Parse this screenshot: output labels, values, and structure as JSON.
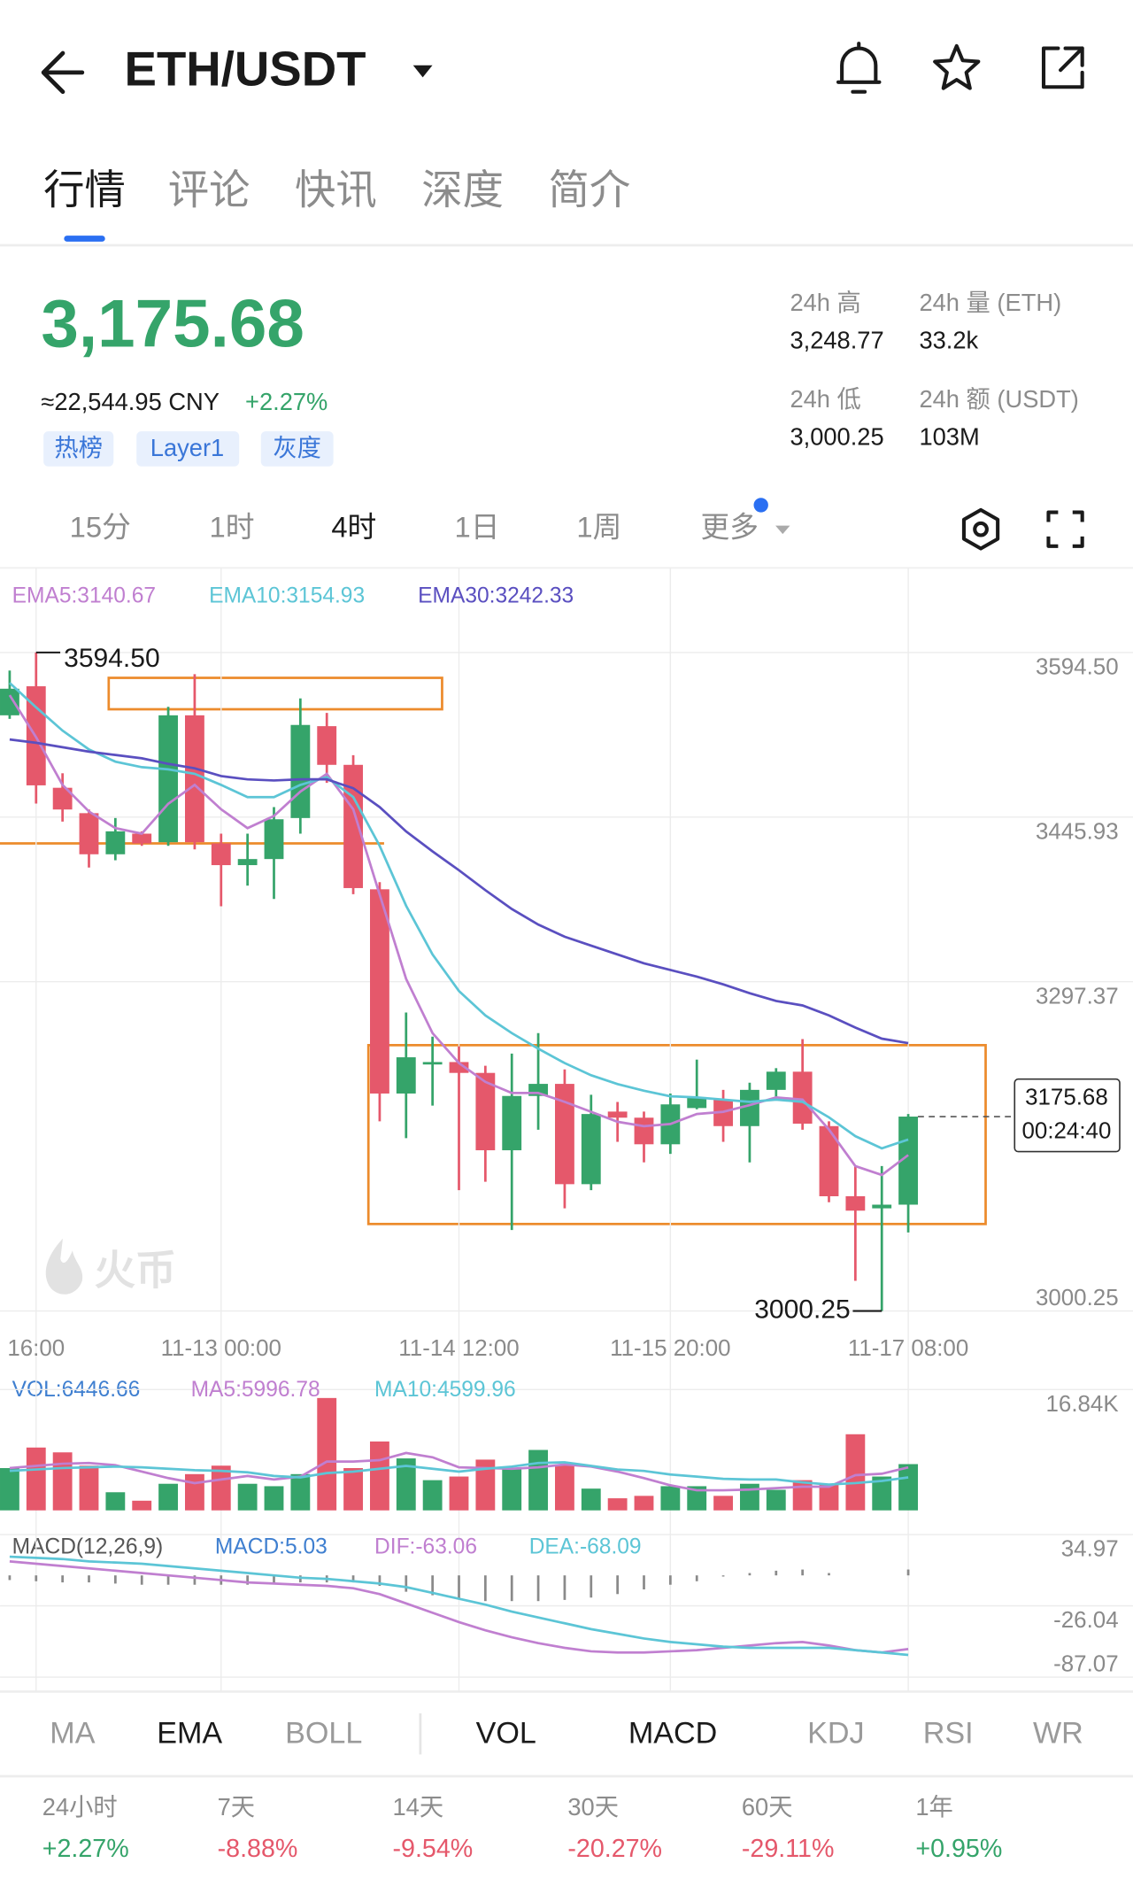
{
  "header": {
    "title": "ETH/USDT"
  },
  "tabs": [
    {
      "label": "行情",
      "active": true
    },
    {
      "label": "评论",
      "active": false
    },
    {
      "label": "快讯",
      "active": false
    },
    {
      "label": "深度",
      "active": false
    },
    {
      "label": "简介",
      "active": false
    }
  ],
  "price": {
    "last": "3,175.68",
    "cny": "≈22,544.95 CNY",
    "change": "+2.27%",
    "tags": [
      "热榜",
      "Layer1",
      "灰度"
    ]
  },
  "stats": [
    {
      "label": "24h 高",
      "value": "3,248.77"
    },
    {
      "label": "24h 量 (ETH)",
      "value": "33.2k"
    },
    {
      "label": "24h 低",
      "value": "3,000.25"
    },
    {
      "label": "24h 额 (USDT)",
      "value": "103M"
    }
  ],
  "intervals": [
    {
      "label": "15分",
      "active": false
    },
    {
      "label": "1时",
      "active": false
    },
    {
      "label": "4时",
      "active": true
    },
    {
      "label": "1日",
      "active": false
    },
    {
      "label": "1周",
      "active": false
    },
    {
      "label": "更多",
      "active": false
    }
  ],
  "watermark": "火币",
  "indicator_tabs": [
    {
      "label": "MA",
      "active": false
    },
    {
      "label": "EMA",
      "active": true
    },
    {
      "label": "BOLL",
      "active": false
    },
    {
      "label": "VOL",
      "active": true
    },
    {
      "label": "MACD",
      "active": true
    },
    {
      "label": "KDJ",
      "active": false
    },
    {
      "label": "RSI",
      "active": false
    },
    {
      "label": "WR",
      "active": false
    }
  ],
  "performance": [
    {
      "period": "24小时",
      "change": "+2.27%"
    },
    {
      "period": "7天",
      "change": "-8.88%"
    },
    {
      "period": "14天",
      "change": "-9.54%"
    },
    {
      "period": "30天",
      "change": "-20.27%"
    },
    {
      "period": "60天",
      "change": "-29.11%"
    },
    {
      "period": "1年",
      "change": "+0.95%"
    }
  ],
  "chart_data": [
    {
      "type": "candlestick",
      "up_color": "#35a46a",
      "down_color": "#e5586b",
      "categories": [
        null,
        "16:00",
        null,
        null,
        null,
        null,
        null,
        null,
        "11-13 00:00",
        null,
        null,
        null,
        null,
        null,
        null,
        null,
        null,
        "11-14 12:00",
        null,
        null,
        null,
        null,
        null,
        null,
        null,
        "11-15 20:00",
        null,
        null,
        null,
        null,
        null,
        null,
        null,
        null,
        "11-17 08:00"
      ],
      "open": [
        3537.8,
        3564.0,
        3472.4,
        3449.5,
        3412.4,
        3431.0,
        3423.3,
        3537.8,
        3422.2,
        3402.6,
        3408.1,
        3445.1,
        3528.0,
        3493.1,
        3380.8,
        3196.5,
        3222.7,
        3224.9,
        3215.1,
        3145.3,
        3194.3,
        3205.2,
        3114.7,
        3180.2,
        3174.7,
        3150.7,
        3183.4,
        3191.1,
        3167.1,
        3199.8,
        3216.2,
        3167.1,
        3103.8,
        3092.9,
        3096.2
      ],
      "high": [
        3578.2,
        3594.5,
        3485.5,
        3452.8,
        3445.1,
        3433.1,
        3545.5,
        3574.9,
        3431.0,
        3431.0,
        3455.0,
        3553.1,
        3540.0,
        3501.8,
        3387.3,
        3269.6,
        3247.8,
        3239.0,
        3221.6,
        3232.5,
        3251.0,
        3218.3,
        3195.4,
        3188.9,
        3180.2,
        3196.5,
        3227.1,
        3199.8,
        3206.3,
        3219.4,
        3245.6,
        3171.4,
        3131.1,
        3131.1,
        3178.0
      ],
      "low": [
        3534.6,
        3458.2,
        3441.9,
        3400.4,
        3407.0,
        3420.0,
        3420.0,
        3416.8,
        3365.5,
        3384.1,
        3372.1,
        3431.0,
        3476.8,
        3376.4,
        3171.4,
        3156.2,
        3185.6,
        3109.3,
        3116.9,
        3073.3,
        3163.8,
        3092.9,
        3109.3,
        3152.9,
        3134.4,
        3142.0,
        3182.3,
        3152.9,
        3134.4,
        3191.1,
        3163.8,
        3098.4,
        3027.5,
        3000.25,
        3071.1
      ],
      "close": [
        3561.8,
        3474.6,
        3452.8,
        3412.4,
        3433.1,
        3422.2,
        3537.8,
        3423.3,
        3402.6,
        3408.1,
        3444.0,
        3529.1,
        3493.1,
        3381.9,
        3196.5,
        3229.2,
        3224.9,
        3215.1,
        3145.3,
        3194.3,
        3205.2,
        3114.7,
        3178.0,
        3174.7,
        3150.7,
        3186.7,
        3193.3,
        3167.1,
        3199.8,
        3216.2,
        3169.3,
        3103.8,
        3090.8,
        3096.2,
        3175.68
      ],
      "series": [
        {
          "name": "EMA5:3140.67",
          "color": "#c07fd0",
          "values": [
            3556,
            3518,
            3475,
            3451,
            3436,
            3431,
            3458,
            3475,
            3453,
            3436,
            3447,
            3469,
            3485,
            3453,
            3376,
            3300,
            3251,
            3224,
            3207,
            3197,
            3197,
            3189,
            3180,
            3171,
            3167,
            3169,
            3178,
            3180,
            3186,
            3193,
            3191,
            3164,
            3131,
            3123,
            3141
          ]
        },
        {
          "name": "EMA10:3154.93",
          "color": "#5cc5d6",
          "values": [
            3567,
            3545,
            3524,
            3507,
            3496,
            3491,
            3489,
            3485,
            3475,
            3464,
            3464,
            3475,
            3482,
            3464,
            3420,
            3366,
            3322,
            3289,
            3267,
            3251,
            3237,
            3224,
            3213,
            3205,
            3199,
            3194,
            3193,
            3191,
            3189,
            3191,
            3189,
            3175,
            3158,
            3147,
            3155
          ]
        },
        {
          "name": "EMA30:3242.33",
          "color": "#5a4fc0",
          "values": [
            3516,
            3513,
            3509,
            3505,
            3502,
            3499,
            3494,
            3490,
            3483,
            3480,
            3479,
            3480,
            3480,
            3472,
            3455,
            3433,
            3415,
            3398,
            3380,
            3363,
            3349,
            3338,
            3330,
            3322,
            3314,
            3308,
            3302,
            3295,
            3287,
            3280,
            3276,
            3267,
            3256,
            3246,
            3242
          ]
        }
      ],
      "ylim": [
        3000.25,
        3594.5
      ],
      "yticks": [
        {
          "value": 3594.5,
          "label": "3594.50"
        },
        3445.93,
        3297.37,
        3000.25
      ],
      "max_label": "3594.50",
      "min_label": "3000.25",
      "price_tag": "3175.68",
      "countdown": "00:24:40"
    },
    {
      "type": "bar",
      "title": "VOL:6446.66",
      "values": [
        5894,
        8757,
        8083,
        6231,
        2526,
        1347,
        3705,
        5052,
        6231,
        3705,
        3368,
        5052,
        15661,
        5894,
        9599,
        7241,
        4210,
        4715,
        7073,
        5894,
        8420,
        6399,
        3031,
        1684,
        2021,
        3368,
        3368,
        2021,
        3705,
        2863,
        4210,
        3705,
        10609,
        4715,
        6447
      ],
      "series": [
        {
          "name": "MA5:5996.78",
          "color": "#c07fd0",
          "values": [
            5900,
            6200,
            6500,
            6600,
            6300,
            5400,
            4500,
            3800,
            4300,
            4800,
            4300,
            4700,
            6800,
            6800,
            7000,
            8000,
            7400,
            6000,
            5900,
            5800,
            6000,
            6400,
            6100,
            5400,
            4500,
            3500,
            2800,
            2800,
            2900,
            3100,
            3300,
            3300,
            4900,
            5100,
            5997
          ]
        },
        {
          "name": "MA10:4599.96",
          "color": "#5cc5d6",
          "values": [
            5500,
            5700,
            5900,
            6000,
            6100,
            6000,
            5800,
            5600,
            5500,
            5300,
            4800,
            4600,
            5200,
            5400,
            5800,
            6200,
            5800,
            5400,
            5800,
            6100,
            6600,
            6700,
            6200,
            5700,
            5500,
            5000,
            4700,
            4400,
            4300,
            4300,
            3900,
            3600,
            3800,
            4100,
            4600
          ]
        }
      ],
      "ylim": [
        0,
        16840
      ],
      "yticks": [
        {
          "value": 16840,
          "label": "16.84K"
        }
      ]
    },
    {
      "type": "macd",
      "title": "MACD(12,26,9)",
      "bar_color": "#8a8a8a",
      "series": [
        {
          "name": "MACD:5.03",
          "color": "#3f7fd0",
          "kind": "bar",
          "values": [
            -4,
            -5,
            -6,
            -6,
            -7,
            -8,
            -8,
            -8,
            -8,
            -8,
            -7,
            -6,
            -6,
            -6,
            -9,
            -14,
            -17,
            -20,
            -22,
            -22,
            -22,
            -21,
            -19,
            -16,
            -12,
            -8,
            -5,
            -1,
            2,
            4,
            5,
            2,
            0,
            0,
            5.03
          ]
        },
        {
          "name": "DIF:-63.06",
          "color": "#c07fd0",
          "kind": "line",
          "values": [
            12,
            10,
            8,
            6,
            4,
            2,
            0,
            -2,
            -4,
            -6,
            -7,
            -8,
            -9,
            -11,
            -16,
            -24,
            -32,
            -40,
            -47,
            -53,
            -58,
            -62,
            -65,
            -66,
            -66,
            -65,
            -64,
            -62,
            -60,
            -58,
            -57,
            -60,
            -64,
            -66,
            -63.06
          ]
        },
        {
          "name": "DEA:-68.09",
          "color": "#5cc5d6",
          "kind": "line",
          "values": [
            16,
            15,
            14,
            12,
            11,
            10,
            8,
            6,
            4,
            2,
            0,
            -2,
            -3,
            -5,
            -7,
            -10,
            -15,
            -20,
            -25,
            -31,
            -36,
            -41,
            -46,
            -50,
            -54,
            -57,
            -59,
            -61,
            -62,
            -62,
            -62,
            -62,
            -64,
            -66,
            -68.09
          ]
        }
      ],
      "ylim": [
        -87.07,
        34.97
      ],
      "yticks": [
        34.97,
        -26.04,
        -87.07
      ]
    }
  ]
}
